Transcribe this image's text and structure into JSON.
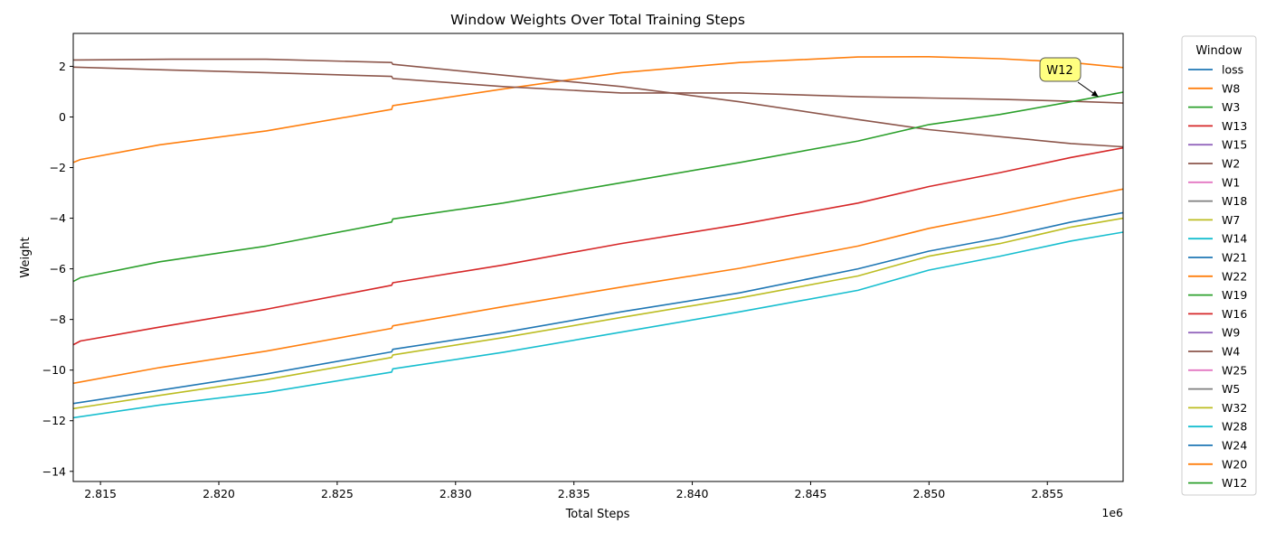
{
  "chart_data": {
    "type": "line",
    "title": "Window Weights Over Total Training Steps",
    "xlabel": "Total Steps",
    "ylabel": "Weight",
    "x_offset_label": "1e6",
    "xlim": [
      2813850,
      2858200
    ],
    "ylim": [
      -14.4,
      3.3
    ],
    "x_ticks": [
      2815000,
      2820000,
      2825000,
      2830000,
      2835000,
      2840000,
      2845000,
      2850000,
      2855000
    ],
    "x_tick_labels": [
      "2.815",
      "2.820",
      "2.825",
      "2.830",
      "2.835",
      "2.840",
      "2.845",
      "2.850",
      "2.855"
    ],
    "y_ticks": [
      2,
      0,
      -2,
      -4,
      -6,
      -8,
      -10,
      -12,
      -14
    ],
    "y_tick_labels": [
      "2",
      "0",
      "−2",
      "−4",
      "−6",
      "−8",
      "−10",
      "−12",
      "−14"
    ],
    "grid": false,
    "legend": {
      "title": "Window",
      "placement": "outside-right",
      "entries": [
        {
          "name": "loss",
          "color": "#1f77b4"
        },
        {
          "name": "W8",
          "color": "#ff7f0e"
        },
        {
          "name": "W3",
          "color": "#2ca02c"
        },
        {
          "name": "W13",
          "color": "#d62728"
        },
        {
          "name": "W15",
          "color": "#9467bd"
        },
        {
          "name": "W2",
          "color": "#8c564b"
        },
        {
          "name": "W1",
          "color": "#e377c2"
        },
        {
          "name": "W18",
          "color": "#7f7f7f"
        },
        {
          "name": "W7",
          "color": "#bcbd22"
        },
        {
          "name": "W14",
          "color": "#17becf"
        },
        {
          "name": "W21",
          "color": "#1f77b4"
        },
        {
          "name": "W22",
          "color": "#ff7f0e"
        },
        {
          "name": "W19",
          "color": "#2ca02c"
        },
        {
          "name": "W16",
          "color": "#d62728"
        },
        {
          "name": "W9",
          "color": "#9467bd"
        },
        {
          "name": "W4",
          "color": "#8c564b"
        },
        {
          "name": "W25",
          "color": "#e377c2"
        },
        {
          "name": "W5",
          "color": "#7f7f7f"
        },
        {
          "name": "W32",
          "color": "#bcbd22"
        },
        {
          "name": "W28",
          "color": "#17becf"
        },
        {
          "name": "W24",
          "color": "#1f77b4"
        },
        {
          "name": "W20",
          "color": "#ff7f0e"
        },
        {
          "name": "W12",
          "color": "#2ca02c"
        }
      ]
    },
    "annotation": {
      "text": "W12",
      "x": 2857150,
      "y": 0.8
    },
    "series": [
      {
        "name": "W8",
        "color": "#ff7f0e",
        "points": [
          [
            2813850,
            -1.8
          ],
          [
            2814150,
            -1.68
          ],
          [
            2817500,
            -1.1
          ],
          [
            2822000,
            -0.55
          ],
          [
            2827300,
            0.3
          ],
          [
            2827350,
            0.45
          ],
          [
            2832000,
            1.1
          ],
          [
            2837000,
            1.75
          ],
          [
            2842000,
            2.15
          ],
          [
            2847000,
            2.37
          ],
          [
            2850000,
            2.38
          ],
          [
            2853000,
            2.3
          ],
          [
            2856000,
            2.15
          ],
          [
            2858200,
            1.95
          ]
        ]
      },
      {
        "name": "W2",
        "color": "#8c564b",
        "points": [
          [
            2813850,
            2.25
          ],
          [
            2818000,
            2.28
          ],
          [
            2822000,
            2.28
          ],
          [
            2827300,
            2.15
          ],
          [
            2827350,
            2.08
          ],
          [
            2832000,
            1.65
          ],
          [
            2837000,
            1.2
          ],
          [
            2842000,
            0.6
          ],
          [
            2847000,
            -0.1
          ],
          [
            2850000,
            -0.5
          ],
          [
            2853000,
            -0.78
          ],
          [
            2856000,
            -1.05
          ],
          [
            2858200,
            -1.18
          ]
        ]
      },
      {
        "name": "W4",
        "color": "#8c564b",
        "points": [
          [
            2813850,
            1.97
          ],
          [
            2818000,
            1.85
          ],
          [
            2822000,
            1.75
          ],
          [
            2827300,
            1.6
          ],
          [
            2827350,
            1.52
          ],
          [
            2832000,
            1.2
          ],
          [
            2837000,
            0.95
          ],
          [
            2842000,
            0.95
          ],
          [
            2847000,
            0.8
          ],
          [
            2850000,
            0.75
          ],
          [
            2853000,
            0.7
          ],
          [
            2856000,
            0.62
          ],
          [
            2858200,
            0.55
          ]
        ]
      },
      {
        "name": "W12",
        "color": "#2ca02c",
        "points": [
          [
            2813850,
            -6.5
          ],
          [
            2814150,
            -6.35
          ],
          [
            2817500,
            -5.72
          ],
          [
            2822000,
            -5.1
          ],
          [
            2827300,
            -4.15
          ],
          [
            2827350,
            -4.03
          ],
          [
            2832000,
            -3.4
          ],
          [
            2837000,
            -2.6
          ],
          [
            2842000,
            -1.8
          ],
          [
            2847000,
            -0.95
          ],
          [
            2850000,
            -0.3
          ],
          [
            2853000,
            0.1
          ],
          [
            2856000,
            0.6
          ],
          [
            2858200,
            0.98
          ]
        ]
      },
      {
        "name": "W13",
        "color": "#d62728",
        "points": [
          [
            2813850,
            -9.0
          ],
          [
            2814150,
            -8.85
          ],
          [
            2817500,
            -8.3
          ],
          [
            2822000,
            -7.6
          ],
          [
            2827300,
            -6.65
          ],
          [
            2827350,
            -6.55
          ],
          [
            2832000,
            -5.85
          ],
          [
            2837000,
            -5.0
          ],
          [
            2842000,
            -4.25
          ],
          [
            2847000,
            -3.4
          ],
          [
            2850000,
            -2.75
          ],
          [
            2853000,
            -2.2
          ],
          [
            2856000,
            -1.6
          ],
          [
            2858200,
            -1.22
          ]
        ]
      },
      {
        "name": "W20",
        "color": "#ff7f0e",
        "points": [
          [
            2813850,
            -10.52
          ],
          [
            2817500,
            -9.9
          ],
          [
            2822000,
            -9.25
          ],
          [
            2827300,
            -8.35
          ],
          [
            2827350,
            -8.25
          ],
          [
            2832000,
            -7.5
          ],
          [
            2837000,
            -6.72
          ],
          [
            2842000,
            -5.98
          ],
          [
            2847000,
            -5.1
          ],
          [
            2850000,
            -4.4
          ],
          [
            2853000,
            -3.85
          ],
          [
            2856000,
            -3.25
          ],
          [
            2858200,
            -2.85
          ]
        ]
      },
      {
        "name": "W24",
        "color": "#1f77b4",
        "points": [
          [
            2813850,
            -11.32
          ],
          [
            2817500,
            -10.8
          ],
          [
            2822000,
            -10.15
          ],
          [
            2827300,
            -9.28
          ],
          [
            2827350,
            -9.18
          ],
          [
            2832000,
            -8.52
          ],
          [
            2837000,
            -7.7
          ],
          [
            2842000,
            -6.95
          ],
          [
            2847000,
            -6.0
          ],
          [
            2850000,
            -5.3
          ],
          [
            2853000,
            -4.78
          ],
          [
            2856000,
            -4.15
          ],
          [
            2858200,
            -3.78
          ]
        ]
      },
      {
        "name": "W32",
        "color": "#bcbd22",
        "points": [
          [
            2813850,
            -11.52
          ],
          [
            2817500,
            -11.0
          ],
          [
            2822000,
            -10.38
          ],
          [
            2827300,
            -9.5
          ],
          [
            2827350,
            -9.4
          ],
          [
            2832000,
            -8.72
          ],
          [
            2837000,
            -7.92
          ],
          [
            2842000,
            -7.15
          ],
          [
            2847000,
            -6.28
          ],
          [
            2850000,
            -5.5
          ],
          [
            2853000,
            -5.0
          ],
          [
            2856000,
            -4.35
          ],
          [
            2858200,
            -4.0
          ]
        ]
      },
      {
        "name": "W28",
        "color": "#17becf",
        "points": [
          [
            2813850,
            -11.88
          ],
          [
            2817500,
            -11.38
          ],
          [
            2822000,
            -10.88
          ],
          [
            2827300,
            -10.08
          ],
          [
            2827350,
            -9.95
          ],
          [
            2832000,
            -9.3
          ],
          [
            2837000,
            -8.5
          ],
          [
            2842000,
            -7.7
          ],
          [
            2847000,
            -6.85
          ],
          [
            2850000,
            -6.05
          ],
          [
            2853000,
            -5.5
          ],
          [
            2856000,
            -4.9
          ],
          [
            2858200,
            -4.55
          ]
        ]
      }
    ]
  }
}
